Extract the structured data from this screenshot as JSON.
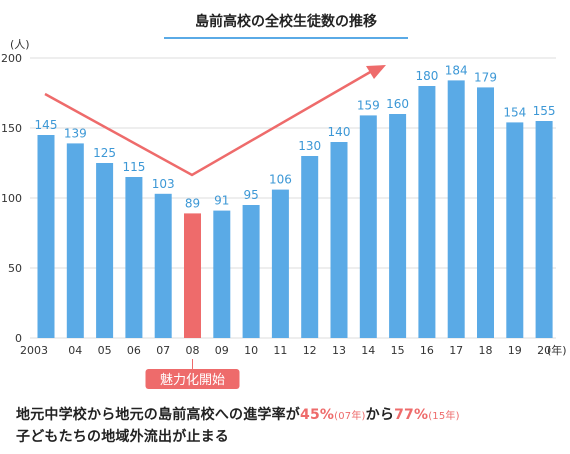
{
  "chart_data": {
    "type": "bar",
    "title": "島前高校の全校生徒数の推移",
    "y_unit": "(人)",
    "x_unit": "(年)",
    "ylim": [
      0,
      200
    ],
    "yticks": [
      0,
      50,
      100,
      150,
      200
    ],
    "grid": true,
    "categories": [
      "2003",
      "04",
      "05",
      "06",
      "07",
      "08",
      "09",
      "10",
      "11",
      "12",
      "13",
      "14",
      "15",
      "16",
      "17",
      "18",
      "19",
      "20"
    ],
    "values": [
      145,
      139,
      125,
      115,
      103,
      89,
      91,
      95,
      106,
      130,
      140,
      159,
      160,
      180,
      184,
      179,
      154,
      155
    ],
    "highlight_category": "08",
    "bar_color": "#5aaae6",
    "highlight_color": "#ee6b6b",
    "label_color": "#3d98d6",
    "highlight_badge": "魅力化開始"
  },
  "footer": {
    "line1_a": "地元中学校から地元の島前高校への進学率が",
    "line1_b": "45%",
    "line1_c": "(07年)",
    "line1_d": "から",
    "line1_e": "77%",
    "line1_f": "(15年)",
    "line2": "子どもたちの地域外流出が止まる"
  }
}
